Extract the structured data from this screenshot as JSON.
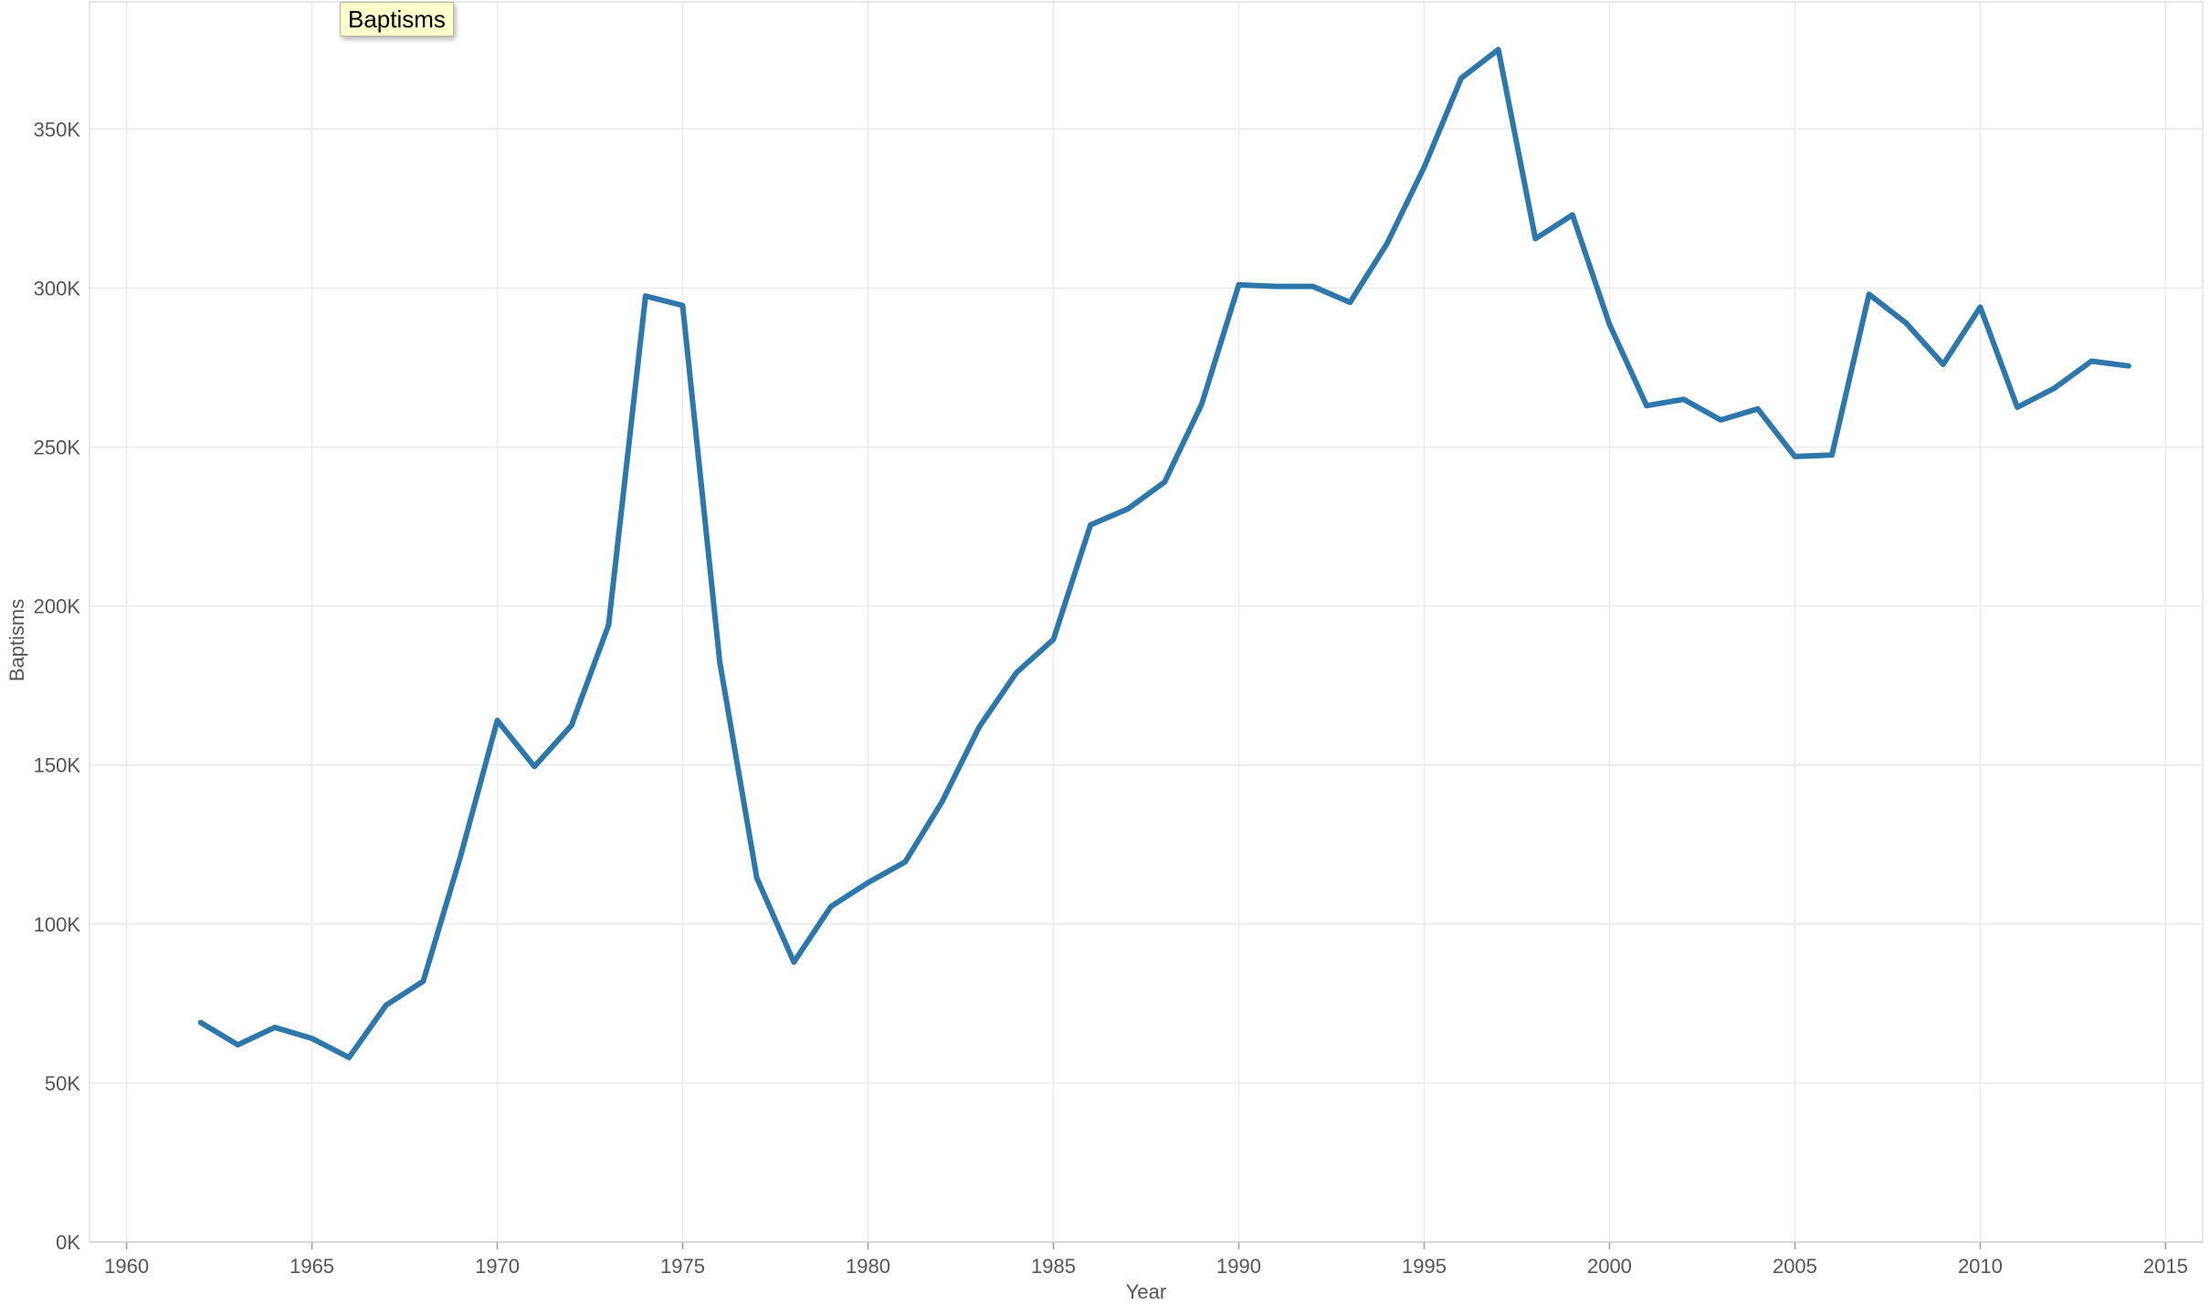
{
  "chart_data": {
    "type": "line",
    "title": "",
    "xlabel": "Year",
    "ylabel": "Baptisms",
    "xlim": [
      1959,
      2016
    ],
    "ylim": [
      0,
      390000
    ],
    "x_ticks": [
      1960,
      1965,
      1970,
      1975,
      1980,
      1985,
      1990,
      1995,
      2000,
      2005,
      2010,
      2015
    ],
    "y_ticks": [
      0,
      50000,
      100000,
      150000,
      200000,
      250000,
      300000,
      350000
    ],
    "y_tick_labels": [
      "0K",
      "50K",
      "100K",
      "150K",
      "200K",
      "250K",
      "300K",
      "350K"
    ],
    "grid": true,
    "legend_position": "top-left",
    "series": [
      {
        "name": "Baptisms",
        "color": "#2d77aa",
        "x": [
          1962,
          1963,
          1964,
          1965,
          1966,
          1967,
          1968,
          1969,
          1970,
          1971,
          1972,
          1973,
          1974,
          1975,
          1976,
          1977,
          1978,
          1979,
          1980,
          1981,
          1982,
          1983,
          1984,
          1985,
          1986,
          1987,
          1988,
          1989,
          1990,
          1991,
          1992,
          1993,
          1994,
          1995,
          1996,
          1997,
          1998,
          1999,
          2000,
          2001,
          2002,
          2003,
          2004,
          2005,
          2006,
          2007,
          2008,
          2009,
          2010,
          2011,
          2012,
          2013,
          2014
        ],
        "y": [
          69000,
          62000,
          67500,
          64000,
          58000,
          74500,
          82000,
          121000,
          164000,
          149500,
          162500,
          194000,
          297500,
          294500,
          182500,
          114500,
          88000,
          105500,
          113000,
          119500,
          138500,
          162000,
          179000,
          189500,
          225500,
          230500,
          239000,
          263500,
          301000,
          300500,
          300500,
          295500,
          314000,
          338000,
          366000,
          375000,
          315500,
          323000,
          288500,
          263000,
          265000,
          258500,
          262000,
          247000,
          247500,
          298000,
          289000,
          276000,
          294000,
          262500,
          268500,
          277000,
          275500
        ]
      }
    ]
  },
  "legend": {
    "label": "Baptisms"
  }
}
